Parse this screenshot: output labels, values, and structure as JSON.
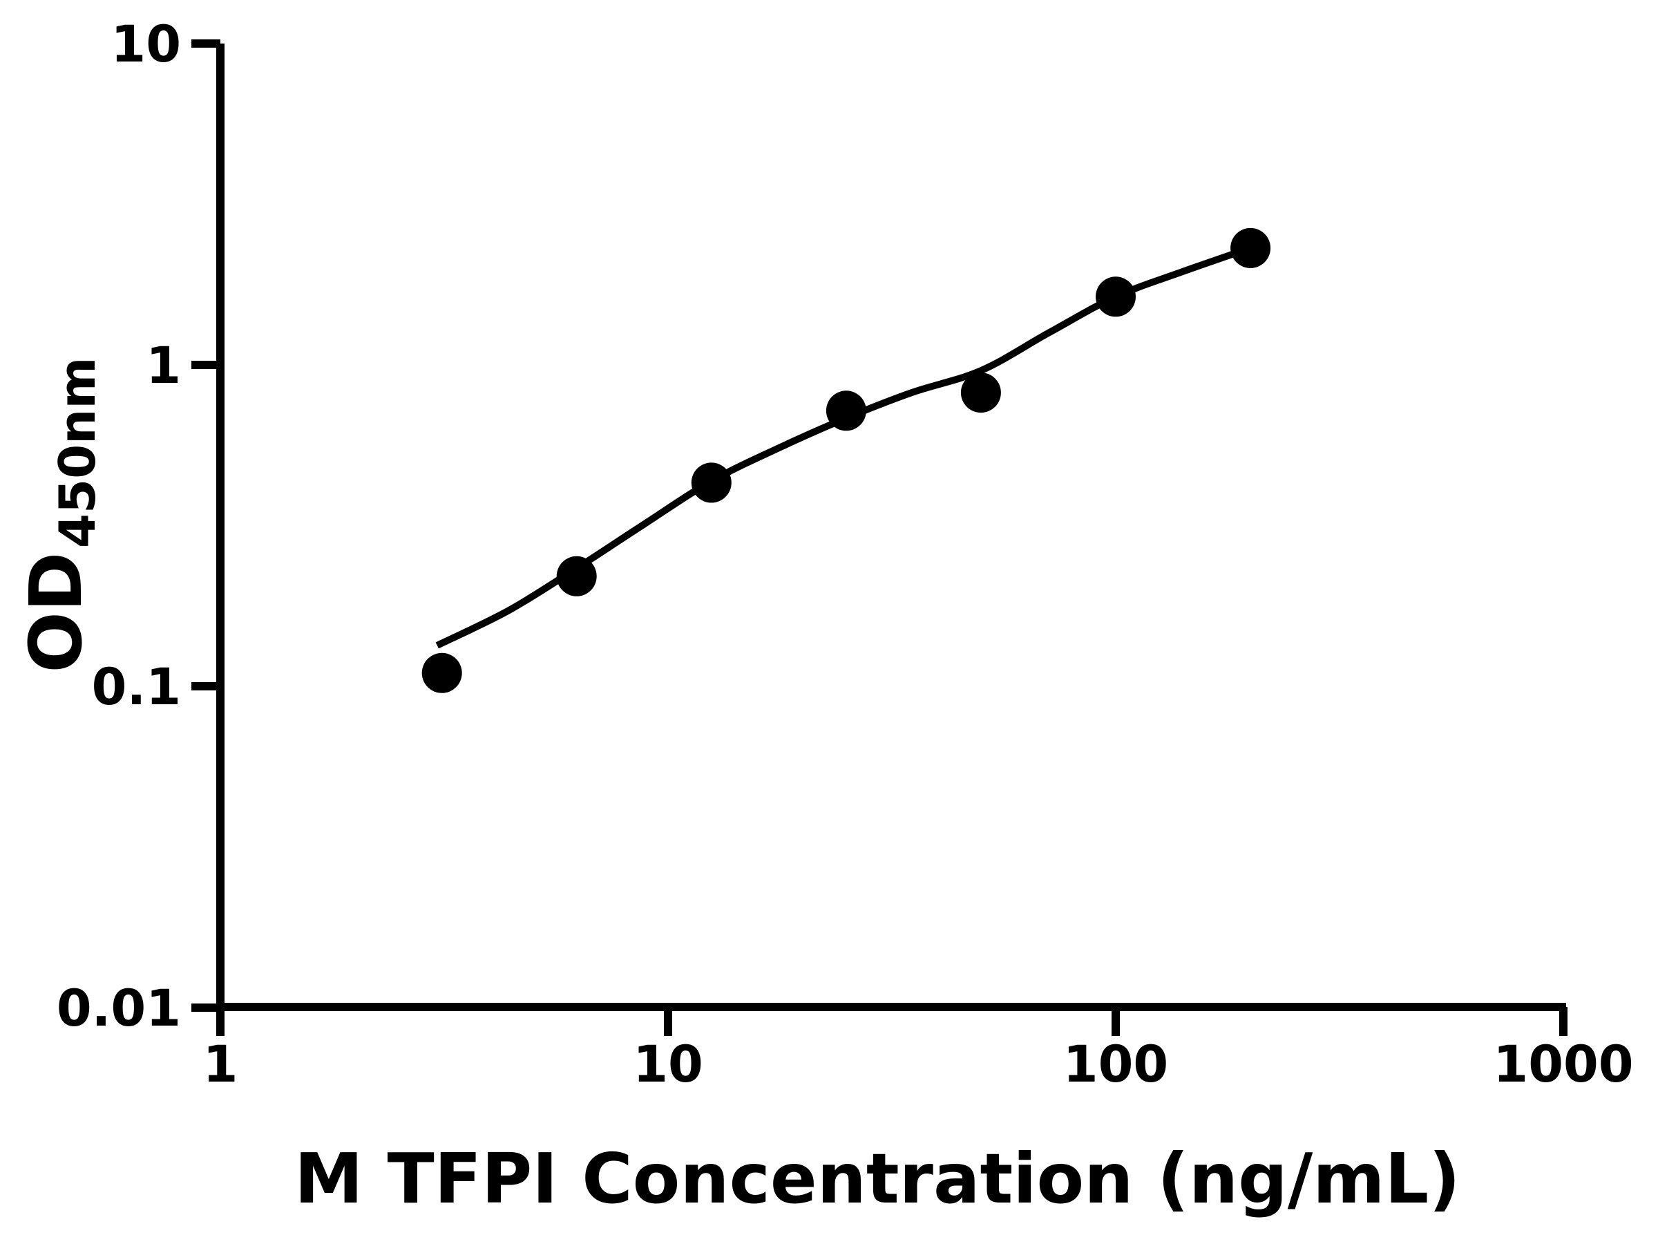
{
  "page": {
    "background": "#ffffff",
    "foreground": "#000000"
  },
  "chart_data": {
    "type": "scatter",
    "title": "",
    "xlabel": "M TFPI Concentration (ng/mL)",
    "ylabel": {
      "main": "OD",
      "subscript": "450nm"
    },
    "grid": false,
    "legend": "none",
    "x_axis": {
      "scale": "log",
      "min": 1,
      "max": 1000,
      "ticks": [
        1,
        10,
        100,
        1000
      ],
      "tick_labels": [
        "1",
        "10",
        "100",
        "1000"
      ]
    },
    "y_axis": {
      "scale": "log",
      "min": 0.01,
      "max": 10,
      "ticks": [
        10,
        1,
        0.1,
        0.01
      ],
      "tick_labels": [
        "10",
        "1",
        "0.1",
        "0.01"
      ]
    },
    "series": [
      {
        "name": "standard-curve-points",
        "marker": "filled-circle",
        "color": "#000000",
        "points": [
          {
            "x": 3.125,
            "y": 0.11
          },
          {
            "x": 6.25,
            "y": 0.22
          },
          {
            "x": 12.5,
            "y": 0.43
          },
          {
            "x": 25,
            "y": 0.72
          },
          {
            "x": 50,
            "y": 0.82
          },
          {
            "x": 100,
            "y": 1.63
          },
          {
            "x": 200,
            "y": 2.31
          }
        ]
      }
    ],
    "fit_curve": {
      "name": "four-parameter-logistic-fit",
      "color": "#000000",
      "samples": [
        [
          3.05,
          0.134
        ],
        [
          4.4,
          0.172
        ],
        [
          6.25,
          0.233
        ],
        [
          8.8,
          0.318
        ],
        [
          12.5,
          0.435
        ],
        [
          17.7,
          0.552
        ],
        [
          25,
          0.683
        ],
        [
          35,
          0.82
        ],
        [
          50,
          0.96
        ],
        [
          71,
          1.26
        ],
        [
          100,
          1.63
        ],
        [
          141,
          1.95
        ],
        [
          200,
          2.31
        ]
      ]
    }
  }
}
